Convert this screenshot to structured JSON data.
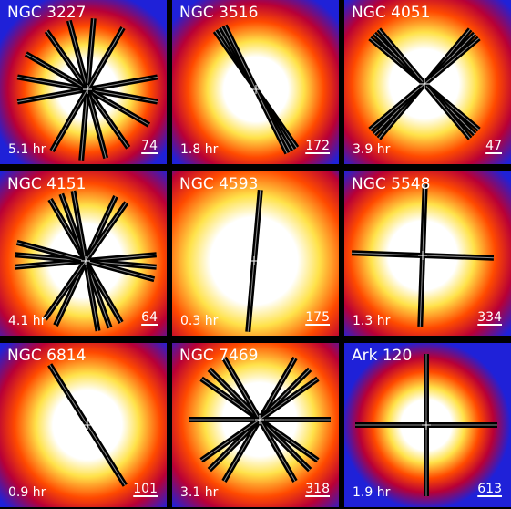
{
  "colors": {
    "background": "#1f21d8",
    "core": "#ffffff",
    "glow": "#ffe24a",
    "halo": "#ff4a00",
    "outer": "#b80036",
    "slit": "#000000",
    "text": "#ffffff"
  },
  "panels": [
    {
      "name": "NGC 3227",
      "exposure": "5.1 hr",
      "scale": "74",
      "slit_angles": [
        -10,
        10,
        30,
        55,
        75,
        95,
        120
      ]
    },
    {
      "name": "NGC 3516",
      "exposure": "1.8 hr",
      "scale": "172",
      "slit_angles": [
        55,
        58,
        61,
        64
      ]
    },
    {
      "name": "NGC 4051",
      "exposure": "3.9 hr",
      "scale": "47",
      "slit_angles": [
        40,
        45,
        50,
        130,
        135,
        140
      ]
    },
    {
      "name": "NGC 4151",
      "exposure": "4.1 hr",
      "scale": "64",
      "slit_angles": [
        -5,
        5,
        15,
        60,
        70,
        80,
        115,
        125
      ]
    },
    {
      "name": "NGC 4593",
      "exposure": "0.3 hr",
      "scale": "175",
      "slit_angles": [
        95
      ]
    },
    {
      "name": "NGC 5548",
      "exposure": "1.3 hr",
      "scale": "334",
      "slit_angles": [
        2,
        92
      ]
    },
    {
      "name": "NGC 6814",
      "exposure": "0.9 hr",
      "scale": "101",
      "slit_angles": [
        58
      ]
    },
    {
      "name": "NGC 7469",
      "exposure": "3.1 hr",
      "scale": "318",
      "slit_angles": [
        0,
        35,
        45,
        60,
        120,
        135,
        145
      ]
    },
    {
      "name": "Ark 120",
      "exposure": "1.9 hr",
      "scale": "613",
      "slit_angles": [
        0,
        90
      ]
    }
  ]
}
